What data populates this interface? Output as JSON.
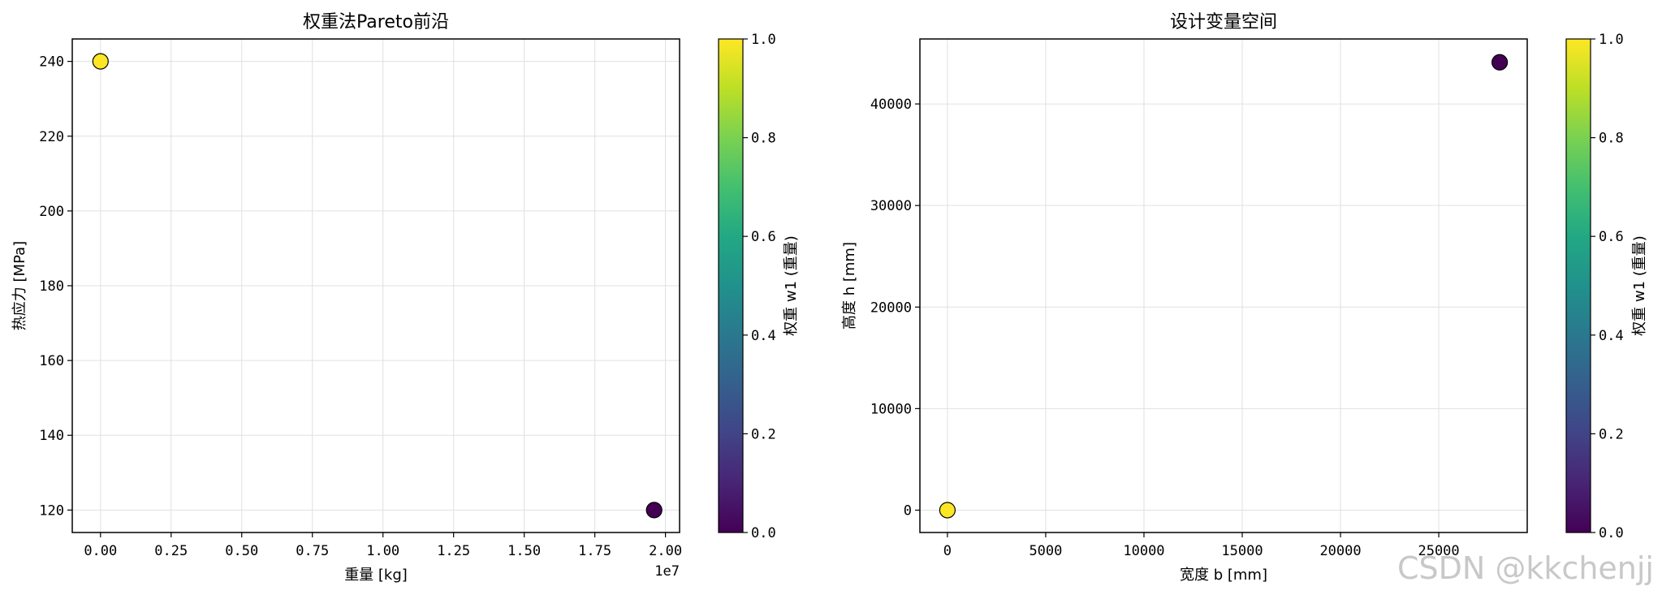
{
  "chart_data": [
    {
      "type": "scatter",
      "title": "权重法Pareto前沿",
      "xlabel": "重量 [kg]",
      "ylabel": "热应力 [MPa]",
      "x_offset_text": "1e7",
      "xlim": [
        -1000000.0,
        20500000.0
      ],
      "ylim": [
        114,
        246
      ],
      "xticks": [
        0,
        2500000,
        5000000,
        7500000,
        10000000,
        12500000,
        15000000,
        17500000,
        20000000
      ],
      "xtick_labels": [
        "0.00",
        "0.25",
        "0.50",
        "0.75",
        "1.00",
        "1.25",
        "1.50",
        "1.75",
        "2.00"
      ],
      "yticks": [
        120,
        140,
        160,
        180,
        200,
        220,
        240
      ],
      "ytick_labels": [
        "120",
        "140",
        "160",
        "180",
        "200",
        "220",
        "240"
      ],
      "grid": true,
      "points": [
        {
          "x": 0,
          "y": 240,
          "w1": 1.0
        },
        {
          "x": 19600000,
          "y": 120,
          "w1": 0.0
        }
      ],
      "colorbar": {
        "label": "权重 w1 (重量)",
        "range": [
          0.0,
          1.0
        ],
        "ticks": [
          0.0,
          0.2,
          0.4,
          0.6,
          0.8,
          1.0
        ],
        "tick_labels": [
          "0.0",
          "0.2",
          "0.4",
          "0.6",
          "0.8",
          "1.0"
        ],
        "colormap": "viridis"
      }
    },
    {
      "type": "scatter",
      "title": "设计变量空间",
      "xlabel": "宽度 b [mm]",
      "ylabel": "高度 h [mm]",
      "xlim": [
        -1400,
        29500
      ],
      "ylim": [
        -2200,
        46400
      ],
      "xticks": [
        0,
        5000,
        10000,
        15000,
        20000,
        25000
      ],
      "xtick_labels": [
        "0",
        "5000",
        "10000",
        "15000",
        "20000",
        "25000"
      ],
      "yticks": [
        0,
        10000,
        20000,
        30000,
        40000
      ],
      "ytick_labels": [
        "0",
        "10000",
        "20000",
        "30000",
        "40000"
      ],
      "grid": true,
      "points": [
        {
          "x": 0,
          "y": 0,
          "w1": 1.0
        },
        {
          "x": 28100,
          "y": 44100,
          "w1": 0.0
        }
      ],
      "colorbar": {
        "label": "权重 w1 (重量)",
        "range": [
          0.0,
          1.0
        ],
        "ticks": [
          0.0,
          0.2,
          0.4,
          0.6,
          0.8,
          1.0
        ],
        "tick_labels": [
          "0.0",
          "0.2",
          "0.4",
          "0.6",
          "0.8",
          "1.0"
        ],
        "colormap": "viridis"
      }
    }
  ],
  "watermark": "CSDN @kkchenjj"
}
